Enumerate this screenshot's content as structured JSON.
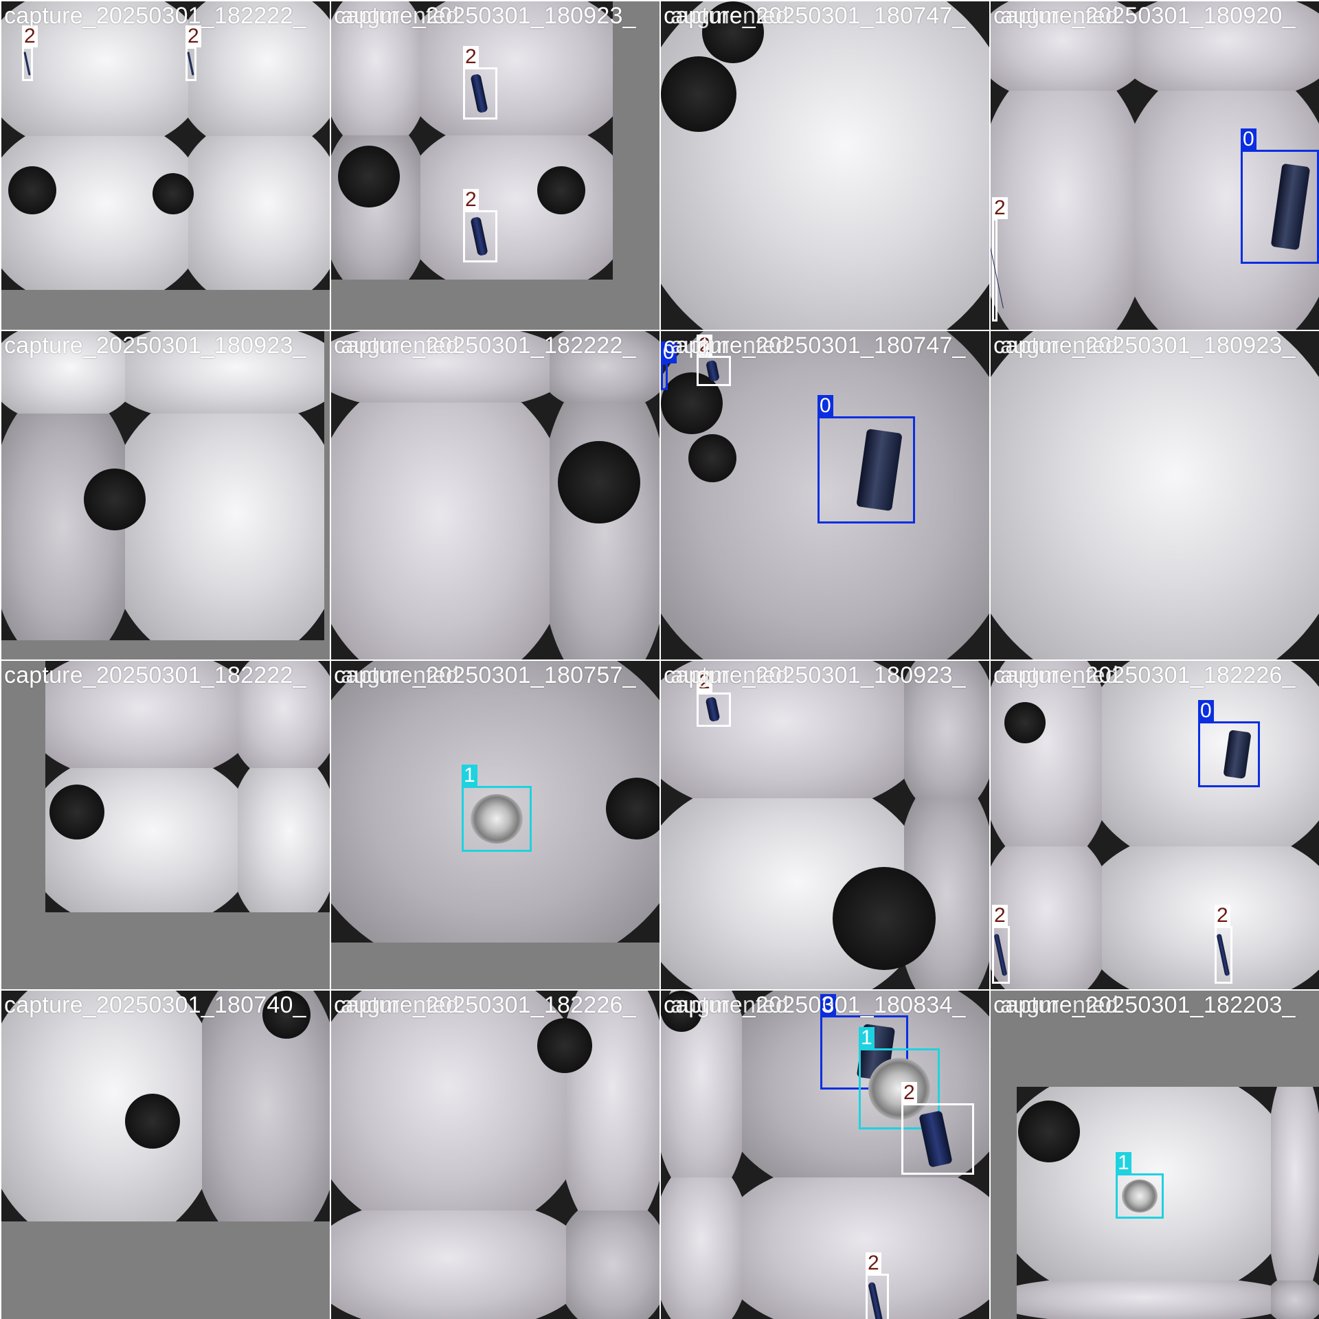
{
  "tiles": [
    {
      "title": "capture_20250301_182222_",
      "title2": "",
      "boxes": [
        {
          "label": "2",
          "cls": "2"
        },
        {
          "label": "2",
          "cls": "2"
        }
      ]
    },
    {
      "title": "capture_20250301_180923_",
      "title2": "augmented",
      "boxes": [
        {
          "label": "2",
          "cls": "2"
        },
        {
          "label": "2",
          "cls": "2"
        }
      ]
    },
    {
      "title": "capture_20250301_180747_",
      "title2": "augmented",
      "boxes": []
    },
    {
      "title": "capture_20250301_180920_",
      "title2": "augmented",
      "boxes": [
        {
          "label": "0",
          "cls": "0"
        },
        {
          "label": "2",
          "cls": "2"
        }
      ]
    },
    {
      "title": "capture_20250301_180923_",
      "title2": "",
      "boxes": []
    },
    {
      "title": "capture_20250301_182222_",
      "title2": "augmented",
      "boxes": []
    },
    {
      "title": "capture_20250301_180747_",
      "title2": "augmented",
      "boxes": [
        {
          "label": "0",
          "cls": "0"
        },
        {
          "label": "0",
          "cls": "0"
        },
        {
          "label": "2",
          "cls": "2"
        }
      ]
    },
    {
      "title": "capture_20250301_180923_",
      "title2": "augmented",
      "boxes": []
    },
    {
      "title": "capture_20250301_182222_",
      "title2": "",
      "boxes": []
    },
    {
      "title": "capture_20250301_180757_",
      "title2": "augmented",
      "boxes": [
        {
          "label": "1",
          "cls": "1"
        }
      ]
    },
    {
      "title": "capture_20250301_180923_",
      "title2": "augmented",
      "boxes": [
        {
          "label": "2",
          "cls": "2"
        }
      ]
    },
    {
      "title": "capture_20250301_182226_",
      "title2": "augmented",
      "boxes": [
        {
          "label": "0",
          "cls": "0"
        },
        {
          "label": "2",
          "cls": "2"
        },
        {
          "label": "2",
          "cls": "2"
        }
      ]
    },
    {
      "title": "capture_20250301_180740_",
      "title2": "",
      "boxes": []
    },
    {
      "title": "capture_20250301_182226_",
      "title2": "augmented",
      "boxes": []
    },
    {
      "title": "capture_20250301_180834_",
      "title2": "augmented",
      "boxes": [
        {
          "label": "0",
          "cls": "0"
        },
        {
          "label": "1",
          "cls": "1"
        },
        {
          "label": "2",
          "cls": "2"
        },
        {
          "label": "2",
          "cls": "2"
        }
      ]
    },
    {
      "title": "capture_20250301_182203_",
      "title2": "augmented",
      "boxes": [
        {
          "label": "1",
          "cls": "1"
        }
      ]
    }
  ],
  "class_colors": {
    "0": {
      "box": "#0a2ee0",
      "label_bg": "#0a2ee0",
      "label_text": "#ffffff"
    },
    "1": {
      "box": "#1ed2e0",
      "label_bg": "#1ed2e0",
      "label_text": "#ffffff"
    },
    "2": {
      "box": "#ffffff",
      "label_bg": "#ffffff",
      "label_text": "#6b1a10"
    }
  }
}
